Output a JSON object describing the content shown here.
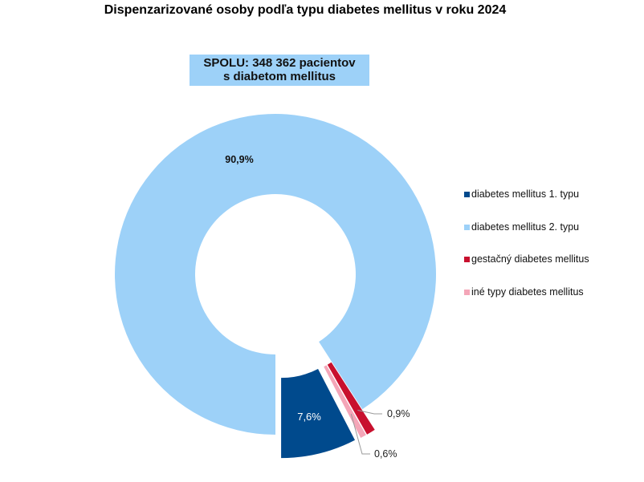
{
  "chart_data": {
    "type": "pie",
    "subtype": "donut",
    "title": "Dispenzarizované osoby podľa typu diabetes mellitus v roku 2024",
    "total_label_line1": "SPOLU: 348 362 pacientov",
    "total_label_line2": "s diabetom mellitus",
    "legend_position": "right",
    "slices": [
      {
        "name": "diabetes mellitus 1. typu",
        "value": 7.6,
        "label": "7,6%",
        "color": "#004a8d",
        "exploded": true
      },
      {
        "name": "diabetes mellitus 2. typu",
        "value": 90.9,
        "label": "90,9%",
        "color": "#9dd1f8",
        "exploded": false
      },
      {
        "name": "gestačný diabetes mellitus",
        "value": 0.9,
        "label": "0,9%",
        "color": "#c8102e",
        "exploded": true
      },
      {
        "name": "iné typy diabetes mellitus",
        "value": 0.6,
        "label": "0,6%",
        "color": "#f4a6b8",
        "exploded": true
      }
    ]
  }
}
